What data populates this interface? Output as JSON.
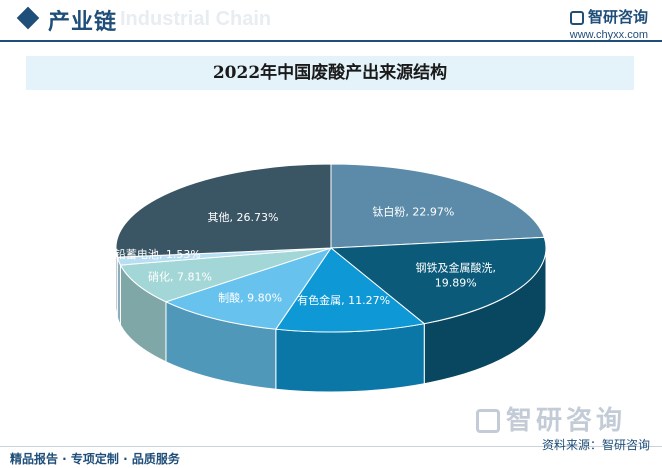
{
  "header": {
    "section_title": "产业链",
    "watermark_text": "Industrial Chain",
    "brand_name": "智研咨询",
    "brand_url": "www.chyxx.com"
  },
  "chart_data": {
    "type": "pie",
    "title": "2022年中国废酸产出来源结构",
    "slices": [
      {
        "label": "钛白粉",
        "value": 22.97,
        "display": "钛白粉, 22.97%",
        "color": "#5b8ba8"
      },
      {
        "label": "钢铁及金属酸洗",
        "value": 19.89,
        "display": "钢铁及金属酸洗,\n19.89%",
        "color": "#0b5a7a"
      },
      {
        "label": "有色金属",
        "value": 11.27,
        "display": "有色金属, 11.27%",
        "color": "#0e99d6"
      },
      {
        "label": "制酸",
        "value": 9.8,
        "display": "制酸, 9.80%",
        "color": "#67c3ee"
      },
      {
        "label": "硝化",
        "value": 7.81,
        "display": "硝化, 7.81%",
        "color": "#a3d6d6"
      },
      {
        "label": "铅蓄电池",
        "value": 1.53,
        "display": "铅蓄电池, 1.53%",
        "color": "#b7def2"
      },
      {
        "label": "其他",
        "value": 26.73,
        "display": "其他, 26.73%",
        "color": "#3a5563"
      }
    ]
  },
  "footer": {
    "tagline": "精品报告 · 专项定制 · 品质服务",
    "source": "资料来源：智研咨询"
  },
  "watermark": {
    "text": "智研咨询"
  }
}
